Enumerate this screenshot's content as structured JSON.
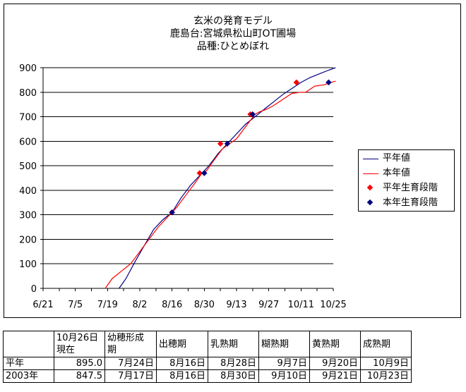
{
  "chart_data": {
    "type": "line",
    "title_lines": [
      "玄米の発育モデル",
      "鹿島台:宮城県松山町OT圃場",
      "品種:ひとめぼれ"
    ],
    "ylim": [
      0,
      900
    ],
    "yticks": [
      "0",
      "100",
      "200",
      "300",
      "400",
      "500",
      "600",
      "700",
      "800",
      "900"
    ],
    "xlim": [
      0,
      126
    ],
    "xticks": [
      {
        "pos": 0,
        "label": "6/21"
      },
      {
        "pos": 14,
        "label": "7/5"
      },
      {
        "pos": 28,
        "label": "7/19"
      },
      {
        "pos": 42,
        "label": "8/2"
      },
      {
        "pos": 56,
        "label": "8/16"
      },
      {
        "pos": 70,
        "label": "8/30"
      },
      {
        "pos": 84,
        "label": "9/13"
      },
      {
        "pos": 98,
        "label": "9/27"
      },
      {
        "pos": 112,
        "label": "10/11"
      },
      {
        "pos": 126,
        "label": "10/25"
      }
    ],
    "grid": "horizontal",
    "legend_position": "right",
    "series": [
      {
        "name": "平年値",
        "kind": "line",
        "color": "#000080",
        "points": [
          [
            33,
            0
          ],
          [
            36,
            40
          ],
          [
            40,
            110
          ],
          [
            44,
            175
          ],
          [
            48,
            240
          ],
          [
            52,
            280
          ],
          [
            56,
            310
          ],
          [
            60,
            370
          ],
          [
            64,
            420
          ],
          [
            68,
            460
          ],
          [
            72,
            500
          ],
          [
            76,
            550
          ],
          [
            80,
            590
          ],
          [
            84,
            630
          ],
          [
            88,
            670
          ],
          [
            92,
            700
          ],
          [
            96,
            730
          ],
          [
            100,
            760
          ],
          [
            104,
            790
          ],
          [
            108,
            815
          ],
          [
            112,
            840
          ],
          [
            116,
            860
          ],
          [
            120,
            875
          ],
          [
            124,
            890
          ],
          [
            127,
            900
          ]
        ]
      },
      {
        "name": "本年値",
        "kind": "line",
        "color": "#ff0000",
        "points": [
          [
            27,
            0
          ],
          [
            30,
            40
          ],
          [
            34,
            70
          ],
          [
            38,
            100
          ],
          [
            42,
            150
          ],
          [
            46,
            200
          ],
          [
            50,
            250
          ],
          [
            54,
            290
          ],
          [
            58,
            330
          ],
          [
            62,
            380
          ],
          [
            66,
            430
          ],
          [
            69,
            470
          ],
          [
            71,
            480
          ],
          [
            74,
            520
          ],
          [
            78,
            570
          ],
          [
            81,
            590
          ],
          [
            84,
            610
          ],
          [
            88,
            660
          ],
          [
            92,
            710
          ],
          [
            94,
            720
          ],
          [
            97,
            730
          ],
          [
            100,
            745
          ],
          [
            104,
            770
          ],
          [
            108,
            795
          ],
          [
            112,
            800
          ],
          [
            114,
            800
          ],
          [
            118,
            825
          ],
          [
            122,
            830
          ],
          [
            125,
            840
          ],
          [
            127,
            845
          ]
        ]
      },
      {
        "name": "平年生育段階",
        "kind": "marker",
        "color": "#ff0000",
        "points": [
          [
            56,
            310
          ],
          [
            68,
            470
          ],
          [
            77,
            590
          ],
          [
            90,
            710
          ],
          [
            110,
            840
          ]
        ]
      },
      {
        "name": "本年生育段階",
        "kind": "marker",
        "color": "#000080",
        "points": [
          [
            56,
            310
          ],
          [
            70,
            470
          ],
          [
            80,
            590
          ],
          [
            91,
            710
          ],
          [
            124,
            840
          ]
        ]
      }
    ]
  },
  "table": {
    "headers": [
      [
        "",
        ""
      ],
      [
        "10月26日",
        "現在"
      ],
      [
        "幼穂形成",
        "期"
      ],
      [
        "出穂期",
        ""
      ],
      [
        "乳熟期",
        ""
      ],
      [
        "糊熟期",
        ""
      ],
      [
        "黄熟期",
        ""
      ],
      [
        "成熟期",
        ""
      ]
    ],
    "rows": [
      [
        "平年",
        "895.0",
        "7月24日",
        "8月16日",
        "8月28日",
        "9月7日",
        "9月20日",
        "10月9日"
      ],
      [
        "2003年",
        "847.5",
        "7月17日",
        "8月16日",
        "8月30日",
        "9月10日",
        "9月21日",
        "10月23日"
      ]
    ]
  }
}
